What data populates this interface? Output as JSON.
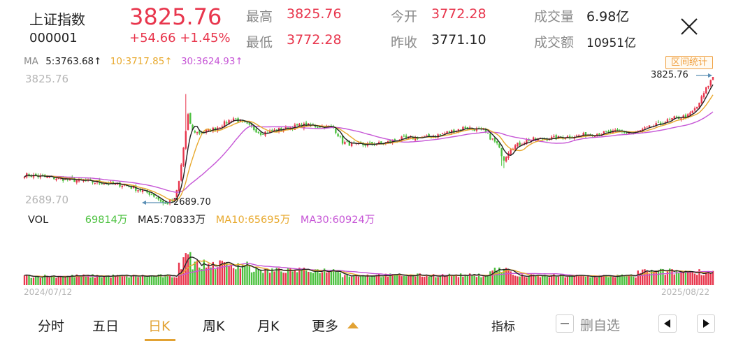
{
  "header": {
    "name": "上证指数",
    "code": "000001",
    "price": "3825.76",
    "change": "+54.66 +1.45%",
    "high_label": "最高",
    "high_value": "3825.76",
    "low_label": "最低",
    "low_value": "3772.28",
    "open_label": "今开",
    "open_value": "3772.28",
    "prev_label": "昨收",
    "prev_value": "3771.10",
    "vol_label": "成交量",
    "vol_value": "6.98亿",
    "amt_label": "成交额",
    "amt_value": "10951亿"
  },
  "ma_row": {
    "label": "MA",
    "ma5": "5:3763.68↑",
    "ma10": "10:3717.85↑",
    "ma30": "30:3624.93↑"
  },
  "range_button": "区间统计",
  "price_chart": {
    "axis_high": "3825.76",
    "axis_low": "2689.70",
    "max_callout": "3825.76",
    "min_callout": "2689.70"
  },
  "vol_row": {
    "label": "VOL",
    "vol": "69814万",
    "ma5": "MA5:70833万",
    "ma10": "MA10:65695万",
    "ma30": "MA30:60924万"
  },
  "dates": {
    "start": "2024/07/12",
    "end": "2025/08/22"
  },
  "tabs": [
    {
      "label": "分时"
    },
    {
      "label": "五日"
    },
    {
      "label": "日K"
    },
    {
      "label": "周K"
    },
    {
      "label": "月K"
    },
    {
      "label": "更多"
    }
  ],
  "toolbar": {
    "indicators": "指标",
    "remove_watch": "删自选"
  },
  "colors": {
    "up": "#e8364d",
    "down": "#4cc13f",
    "ma5": "#222222",
    "ma10": "#e8a92e",
    "ma30": "#c656d6",
    "accent": "#e2a233"
  },
  "chart_data": {
    "type": "candlestick",
    "y_range": [
      2689.7,
      3825.76
    ],
    "x_range": [
      "2024/07/12",
      "2025/08/22"
    ],
    "close_anchors": [
      [
        0,
        2960
      ],
      [
        14,
        2930
      ],
      [
        28,
        2900
      ],
      [
        44,
        2870
      ],
      [
        56,
        2790
      ],
      [
        62,
        2700
      ],
      [
        66,
        2740
      ],
      [
        68,
        2900
      ],
      [
        70,
        3200
      ],
      [
        72,
        3480
      ],
      [
        74,
        3350
      ],
      [
        77,
        3330
      ],
      [
        84,
        3370
      ],
      [
        92,
        3460
      ],
      [
        98,
        3400
      ],
      [
        104,
        3330
      ],
      [
        112,
        3360
      ],
      [
        122,
        3400
      ],
      [
        136,
        3380
      ],
      [
        140,
        3250
      ],
      [
        146,
        3220
      ],
      [
        158,
        3240
      ],
      [
        166,
        3280
      ],
      [
        180,
        3300
      ],
      [
        194,
        3380
      ],
      [
        202,
        3350
      ],
      [
        208,
        3230
      ],
      [
        211,
        3100
      ],
      [
        214,
        3200
      ],
      [
        222,
        3270
      ],
      [
        236,
        3290
      ],
      [
        250,
        3320
      ],
      [
        260,
        3340
      ],
      [
        268,
        3330
      ],
      [
        278,
        3400
      ],
      [
        286,
        3460
      ],
      [
        292,
        3480
      ],
      [
        296,
        3560
      ],
      [
        300,
        3720
      ],
      [
        303,
        3826
      ]
    ]
  }
}
